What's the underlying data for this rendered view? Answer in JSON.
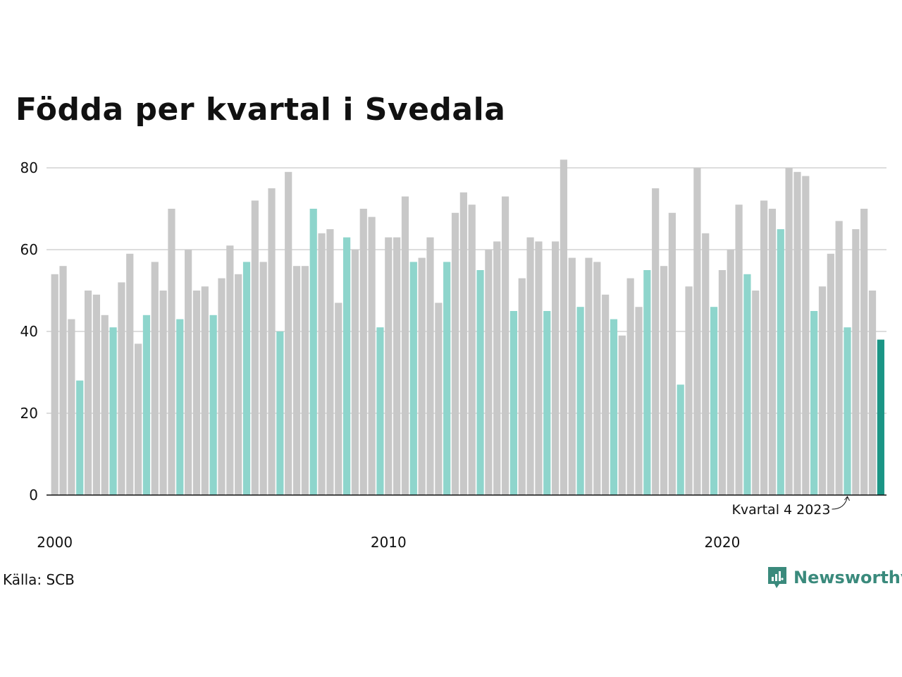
{
  "title": "Födda per kvartal i Svedala",
  "source": "Källa: SCB",
  "brand": "Newsworthy",
  "colors": {
    "bar": "#c8c8c8",
    "highlight_quarter": "#8ed5cc",
    "latest": "#1a9585",
    "grid": "#dddddd",
    "axis": "#111111",
    "brand": "#3a8a7c"
  },
  "chart_data": {
    "type": "bar",
    "title": "Födda per kvartal i Svedala",
    "x_start": {
      "year": 2000,
      "quarter": 1
    },
    "x_ticks": [
      "2000",
      "2010",
      "2020"
    ],
    "y_ticks": [
      0,
      20,
      40,
      60,
      80
    ],
    "ylim": [
      0,
      82
    ],
    "grid": true,
    "highlight_rule": "quarter 4 bars in teal, latest bar darker teal",
    "annotation": "Kvartal 4 2023",
    "values": [
      54,
      56,
      43,
      28,
      50,
      49,
      44,
      41,
      52,
      59,
      37,
      44,
      57,
      50,
      70,
      43,
      60,
      50,
      51,
      44,
      53,
      61,
      54,
      57,
      72,
      57,
      75,
      40,
      79,
      56,
      56,
      70,
      64,
      65,
      47,
      63,
      60,
      70,
      68,
      41,
      63,
      63,
      73,
      57,
      58,
      63,
      47,
      57,
      69,
      74,
      71,
      55,
      60,
      62,
      73,
      45,
      53,
      63,
      62,
      45,
      62,
      82,
      58,
      46,
      58,
      57,
      49,
      43,
      39,
      53,
      46,
      55,
      75,
      56,
      69,
      27,
      51,
      80,
      64,
      46,
      55,
      60,
      71,
      54,
      50,
      72,
      70,
      65,
      80,
      79,
      78,
      45,
      51,
      59,
      67,
      41,
      65,
      70,
      50,
      38
    ]
  }
}
